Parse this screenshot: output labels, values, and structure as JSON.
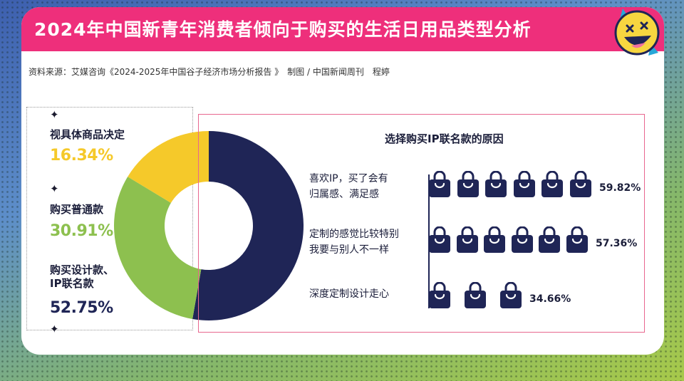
{
  "title": "2024年中国新青年消费者倾向于购买的生活日用品类型分析",
  "source": "资料来源：艾媒咨询《2024-2025年中国谷子经济市场分析报告 》　制图 / 中国新闻周刊　程婷",
  "colors": {
    "header": "#ee2f7b",
    "navy": "#1f2556",
    "green": "#8dc04f",
    "yellow": "#f5c92a",
    "border_pink": "#e8678f"
  },
  "chart_data": [
    {
      "type": "pie",
      "categories": [
        "视具体商品决定",
        "购买普通款",
        "购买设计款、\nIP联名款"
      ],
      "values": [
        16.34,
        30.91,
        52.75
      ],
      "value_labels": [
        "16.34%",
        "30.91%",
        "52.75%"
      ],
      "colors": [
        "#f5c92a",
        "#8dc04f",
        "#1f2556"
      ],
      "donut": true
    },
    {
      "type": "bar",
      "title": "选择购买IP联名款的原因",
      "categories": [
        "喜欢IP，买了会有\n归属感、满足感",
        "定制的感觉比较特别\n我要与别人不一样",
        "深度定制设计走心"
      ],
      "values": [
        59.82,
        57.36,
        34.66
      ],
      "value_labels": [
        "59.82%",
        "57.36%",
        "34.66%"
      ],
      "icon": "shopping-bag-icon",
      "orientation": "horizontal"
    }
  ]
}
